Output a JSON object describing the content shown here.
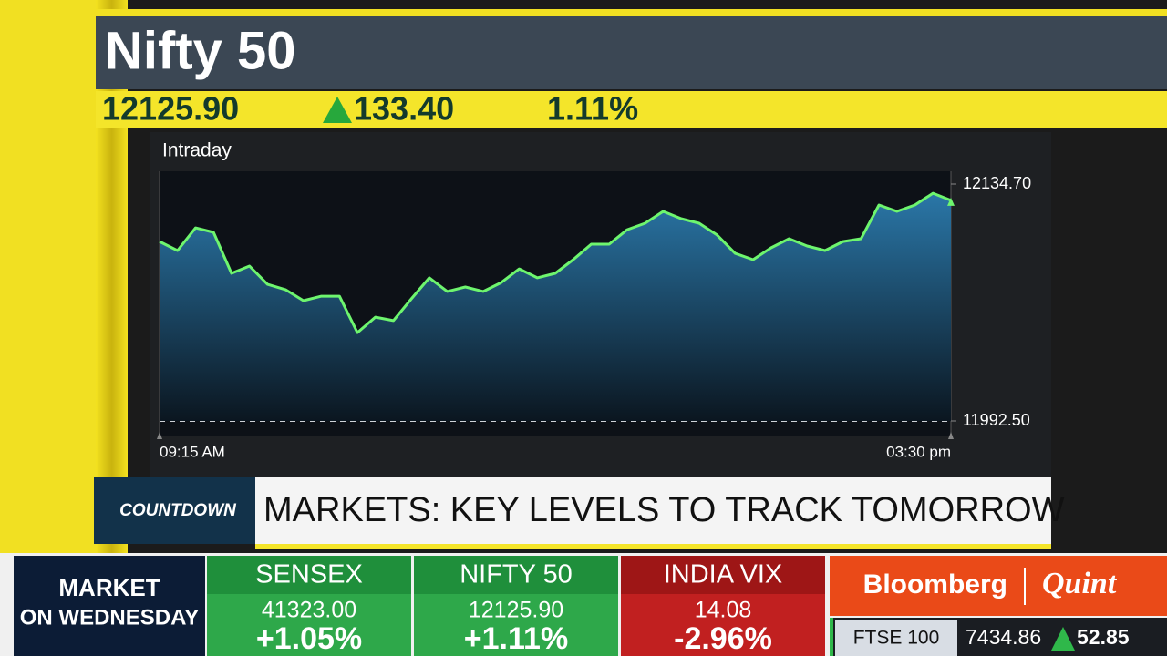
{
  "header": {
    "title": "Nifty 50",
    "price": "12125.90",
    "change": "133.40",
    "change_pct": "1.11%"
  },
  "chart_data": {
    "type": "line",
    "title": "Intraday",
    "color": "#6ef56e",
    "categories": [
      "09:15 AM",
      null,
      null,
      null,
      null,
      null,
      null,
      null,
      null,
      null,
      null,
      null,
      null,
      null,
      null,
      null,
      null,
      null,
      null,
      null,
      null,
      null,
      null,
      null,
      null,
      null,
      null,
      null,
      null,
      null,
      null,
      null,
      null,
      null,
      null,
      null,
      null,
      null,
      null,
      null,
      null,
      null,
      null,
      null,
      "03:30 pm"
    ],
    "values": [
      12100.2,
      12094.8,
      12108.4,
      12105.7,
      12081.1,
      12085.5,
      12074.5,
      12071.3,
      12064.7,
      12067.4,
      12067.4,
      12045.5,
      12054.8,
      12052.7,
      12065.8,
      12078.4,
      12070.2,
      12072.9,
      12070.2,
      12075.6,
      12083.8,
      12078.4,
      12081.1,
      12089.3,
      12098.6,
      12098.6,
      12107.3,
      12111.2,
      12118.3,
      12113.9,
      12111.2,
      12104.1,
      12093.1,
      12089.3,
      12096.4,
      12101.9,
      12097.5,
      12094.8,
      12100.2,
      12101.9,
      12122.1,
      12118.3,
      12122.1,
      12129.2,
      12124.9
    ],
    "ylim": [
      11992.5,
      12134.7
    ],
    "yticks": [
      {
        "value": 12134.7,
        "label": "12134.70"
      },
      {
        "value": 11992.5,
        "label": "11992.50"
      }
    ]
  },
  "banner": {
    "tag": "COUNTDOWN",
    "headline": "MARKETS: KEY LEVELS TO TRACK TOMORROW"
  },
  "ticker": {
    "label_line1": "MARKET",
    "label_line2": "ON WEDNESDAY",
    "items": [
      {
        "name": "SENSEX",
        "value": "41323.00",
        "change": "+1.05%"
      },
      {
        "name": "NIFTY 50",
        "value": "12125.90",
        "change": "+1.11%"
      },
      {
        "name": "INDIA VIX",
        "value": "14.08",
        "change": "-2.96%"
      }
    ],
    "brand": {
      "part1": "Bloomberg",
      "part2": "Quint"
    },
    "ftse": {
      "name": "FTSE 100",
      "value": "7434.86",
      "change": "52.85"
    }
  }
}
